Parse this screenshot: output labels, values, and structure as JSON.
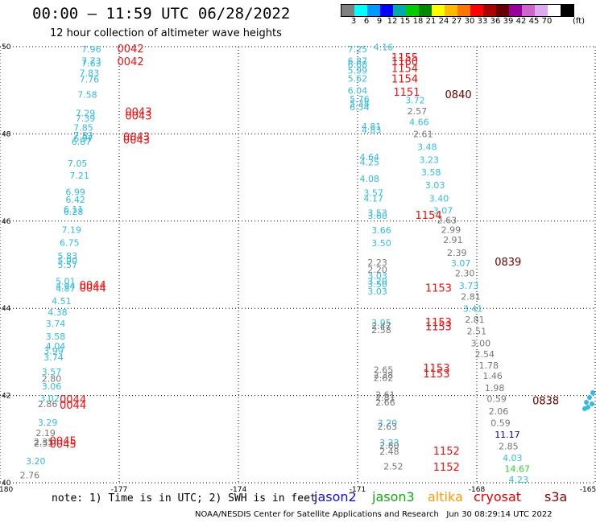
{
  "header": {
    "title": "00:00 – 11:59 UTC 06/28/2022",
    "subtitle": "12 hour collection of altimeter wave heights"
  },
  "colorbar": {
    "colors": [
      "#7f7f7f",
      "#00ffff",
      "#0099ff",
      "#0000ff",
      "#00aaaa",
      "#00cc00",
      "#008800",
      "#ffff00",
      "#ffbb00",
      "#ff7700",
      "#ff0000",
      "#aa0000",
      "#660000",
      "#990099",
      "#cc66cc",
      "#ddaaee",
      "#ffffff",
      "#000000"
    ],
    "ticks": [
      "3",
      "6",
      "9",
      "12",
      "15",
      "18",
      "21",
      "24",
      "27",
      "30",
      "33",
      "36",
      "39",
      "42",
      "45",
      "70"
    ],
    "unit": "(ft)"
  },
  "map": {
    "lon_range": [
      -180,
      -165
    ],
    "lat_range": [
      40,
      50
    ],
    "x_tick_labels": [
      "-180",
      "-177",
      "-174",
      "-171",
      "-168",
      "-165"
    ],
    "y_tick_labels": [
      "40",
      "42",
      "44",
      "46",
      "48",
      "50"
    ]
  },
  "chart_data": {
    "type": "scatter",
    "series": [
      {
        "name": "jason2",
        "color": "#1111cc"
      },
      {
        "name": "jason3",
        "color": "#11aa11"
      },
      {
        "name": "altika",
        "color": "#ff9900"
      },
      {
        "name": "cryosat",
        "color": "#dd0000"
      },
      {
        "name": "s3a",
        "color": "#880000"
      }
    ],
    "swh_labels": [
      {
        "lon": -177.95,
        "lat": 49.87,
        "text": "7.96",
        "color": "#33bbdd"
      },
      {
        "lon": -177.95,
        "lat": 49.6,
        "text": "7.73",
        "color": "#33bbdd"
      },
      {
        "lon": -177.95,
        "lat": 49.55,
        "text": "7.63",
        "color": "#33bbdd"
      },
      {
        "lon": -178.0,
        "lat": 49.33,
        "text": "7.83",
        "color": "#33bbdd"
      },
      {
        "lon": -178.0,
        "lat": 49.18,
        "text": "7.76",
        "color": "#33bbdd"
      },
      {
        "lon": -178.05,
        "lat": 48.83,
        "text": "7.58",
        "color": "#33bbdd"
      },
      {
        "lon": -178.1,
        "lat": 48.4,
        "text": "7.29",
        "color": "#33bbdd"
      },
      {
        "lon": -178.1,
        "lat": 48.28,
        "text": "7.39",
        "color": "#33bbdd"
      },
      {
        "lon": -178.15,
        "lat": 48.07,
        "text": "7.85",
        "color": "#33bbdd"
      },
      {
        "lon": -178.15,
        "lat": 47.9,
        "text": "7.82",
        "color": "#33bbdd"
      },
      {
        "lon": -178.15,
        "lat": 47.82,
        "text": "6.97",
        "color": "#33bbdd"
      },
      {
        "lon": -178.2,
        "lat": 47.75,
        "text": "6.87",
        "color": "#33bbdd"
      },
      {
        "lon": -178.3,
        "lat": 47.25,
        "text": "7.05",
        "color": "#33bbdd"
      },
      {
        "lon": -178.25,
        "lat": 46.97,
        "text": "7.21",
        "color": "#33bbdd"
      },
      {
        "lon": -178.35,
        "lat": 46.6,
        "text": "6.99",
        "color": "#33bbdd"
      },
      {
        "lon": -178.35,
        "lat": 46.42,
        "text": "6.42",
        "color": "#33bbdd"
      },
      {
        "lon": -178.4,
        "lat": 46.2,
        "text": "6.11",
        "color": "#33bbdd"
      },
      {
        "lon": -178.4,
        "lat": 46.14,
        "text": "6.28",
        "color": "#33bbdd"
      },
      {
        "lon": -178.45,
        "lat": 45.73,
        "text": "7.19",
        "color": "#33bbdd"
      },
      {
        "lon": -178.5,
        "lat": 45.43,
        "text": "6.75",
        "color": "#33bbdd"
      },
      {
        "lon": -178.55,
        "lat": 45.13,
        "text": "5.83",
        "color": "#33bbdd"
      },
      {
        "lon": -178.55,
        "lat": 45.02,
        "text": "5.90",
        "color": "#33bbdd"
      },
      {
        "lon": -178.55,
        "lat": 44.93,
        "text": "5.57",
        "color": "#33bbdd"
      },
      {
        "lon": -178.6,
        "lat": 44.55,
        "text": "5.01",
        "color": "#33bbdd"
      },
      {
        "lon": -178.6,
        "lat": 44.44,
        "text": "4.94",
        "color": "#33bbdd"
      },
      {
        "lon": -178.6,
        "lat": 44.38,
        "text": "4.87",
        "color": "#33bbdd"
      },
      {
        "lon": -178.7,
        "lat": 44.1,
        "text": "4.51",
        "color": "#33bbdd"
      },
      {
        "lon": -178.8,
        "lat": 43.84,
        "text": "4.38",
        "color": "#33bbdd"
      },
      {
        "lon": -178.85,
        "lat": 43.58,
        "text": "3.74",
        "color": "#33bbdd"
      },
      {
        "lon": -178.85,
        "lat": 43.28,
        "text": "3.58",
        "color": "#33bbdd"
      },
      {
        "lon": -178.85,
        "lat": 43.06,
        "text": "4.04",
        "color": "#33bbdd"
      },
      {
        "lon": -178.9,
        "lat": 42.95,
        "text": "3.99",
        "color": "#33bbdd"
      },
      {
        "lon": -178.9,
        "lat": 42.8,
        "text": "3.74",
        "color": "#33bbdd"
      },
      {
        "lon": -178.95,
        "lat": 42.47,
        "text": "3.57",
        "color": "#33bbdd"
      },
      {
        "lon": -178.95,
        "lat": 42.32,
        "text": "2.80",
        "color": "#777777"
      },
      {
        "lon": -178.95,
        "lat": 42.14,
        "text": "3.06",
        "color": "#33bbdd"
      },
      {
        "lon": -179.0,
        "lat": 41.86,
        "text": "3.02",
        "color": "#33bbdd"
      },
      {
        "lon": -179.05,
        "lat": 41.73,
        "text": "2.86",
        "color": "#777777"
      },
      {
        "lon": -179.05,
        "lat": 41.31,
        "text": "3.29",
        "color": "#33bbdd"
      },
      {
        "lon": -179.1,
        "lat": 41.07,
        "text": "2.19",
        "color": "#777777"
      },
      {
        "lon": -179.15,
        "lat": 40.87,
        "text": "2.35",
        "color": "#777777"
      },
      {
        "lon": -179.15,
        "lat": 40.83,
        "text": "2.53",
        "color": "#777777"
      },
      {
        "lon": -179.35,
        "lat": 40.42,
        "text": "3.20",
        "color": "#33bbdd"
      },
      {
        "lon": -179.5,
        "lat": 40.1,
        "text": "2.76",
        "color": "#777777"
      },
      {
        "lon": -171.25,
        "lat": 49.87,
        "text": "7.25",
        "color": "#33bbdd"
      },
      {
        "lon": -170.6,
        "lat": 49.92,
        "text": "4.16",
        "color": "#33bbdd"
      },
      {
        "lon": -171.25,
        "lat": 49.6,
        "text": "6.87",
        "color": "#33bbdd"
      },
      {
        "lon": -171.25,
        "lat": 49.52,
        "text": "6.68",
        "color": "#33bbdd"
      },
      {
        "lon": -171.25,
        "lat": 49.38,
        "text": "5.99",
        "color": "#33bbdd"
      },
      {
        "lon": -171.25,
        "lat": 49.2,
        "text": "5.62",
        "color": "#33bbdd"
      },
      {
        "lon": -171.25,
        "lat": 48.92,
        "text": "6.04",
        "color": "#33bbdd"
      },
      {
        "lon": -171.2,
        "lat": 48.73,
        "text": "5.76",
        "color": "#33bbdd"
      },
      {
        "lon": -171.2,
        "lat": 48.63,
        "text": "5.38",
        "color": "#33bbdd"
      },
      {
        "lon": -171.2,
        "lat": 48.54,
        "text": "6.54",
        "color": "#33bbdd"
      },
      {
        "lon": -169.8,
        "lat": 48.7,
        "text": "3.72",
        "color": "#33bbdd"
      },
      {
        "lon": -169.75,
        "lat": 48.45,
        "text": "2.57",
        "color": "#777777"
      },
      {
        "lon": -169.7,
        "lat": 48.2,
        "text": "4.66",
        "color": "#33bbdd"
      },
      {
        "lon": -170.9,
        "lat": 48.1,
        "text": "4.81",
        "color": "#33bbdd"
      },
      {
        "lon": -170.9,
        "lat": 48.02,
        "text": "4.83",
        "color": "#33bbdd"
      },
      {
        "lon": -169.6,
        "lat": 47.92,
        "text": "2.61",
        "color": "#777777"
      },
      {
        "lon": -169.5,
        "lat": 47.63,
        "text": "3.48",
        "color": "#33bbdd"
      },
      {
        "lon": -169.45,
        "lat": 47.33,
        "text": "3.23",
        "color": "#33bbdd"
      },
      {
        "lon": -170.95,
        "lat": 47.4,
        "text": "4.64",
        "color": "#33bbdd"
      },
      {
        "lon": -170.95,
        "lat": 47.28,
        "text": "4.25",
        "color": "#33bbdd"
      },
      {
        "lon": -169.4,
        "lat": 47.05,
        "text": "3.58",
        "color": "#33bbdd"
      },
      {
        "lon": -169.3,
        "lat": 46.75,
        "text": "3.03",
        "color": "#33bbdd"
      },
      {
        "lon": -170.95,
        "lat": 46.9,
        "text": "4.08",
        "color": "#33bbdd"
      },
      {
        "lon": -169.2,
        "lat": 46.45,
        "text": "3.40",
        "color": "#33bbdd"
      },
      {
        "lon": -170.85,
        "lat": 46.58,
        "text": "3.57",
        "color": "#33bbdd"
      },
      {
        "lon": -170.85,
        "lat": 46.45,
        "text": "4.17",
        "color": "#33bbdd"
      },
      {
        "lon": -169.1,
        "lat": 46.17,
        "text": "3.07",
        "color": "#33bbdd"
      },
      {
        "lon": -170.75,
        "lat": 46.12,
        "text": "3.53",
        "color": "#33bbdd"
      },
      {
        "lon": -170.75,
        "lat": 46.05,
        "text": "3.60",
        "color": "#33bbdd"
      },
      {
        "lon": -169.0,
        "lat": 45.95,
        "text": "2.63",
        "color": "#777777"
      },
      {
        "lon": -168.9,
        "lat": 45.73,
        "text": "2.99",
        "color": "#777777"
      },
      {
        "lon": -168.85,
        "lat": 45.5,
        "text": "2.91",
        "color": "#777777"
      },
      {
        "lon": -170.65,
        "lat": 45.72,
        "text": "3.66",
        "color": "#33bbdd"
      },
      {
        "lon": -170.65,
        "lat": 45.42,
        "text": "3.50",
        "color": "#33bbdd"
      },
      {
        "lon": -168.75,
        "lat": 45.2,
        "text": "2.39",
        "color": "#777777"
      },
      {
        "lon": -168.65,
        "lat": 44.96,
        "text": "3.07",
        "color": "#33bbdd"
      },
      {
        "lon": -168.55,
        "lat": 44.73,
        "text": "2.30",
        "color": "#777777"
      },
      {
        "lon": -170.75,
        "lat": 44.98,
        "text": "2.23",
        "color": "#777777"
      },
      {
        "lon": -170.75,
        "lat": 44.82,
        "text": "2.20",
        "color": "#777777"
      },
      {
        "lon": -170.75,
        "lat": 44.68,
        "text": "3.03",
        "color": "#33bbdd"
      },
      {
        "lon": -168.45,
        "lat": 44.45,
        "text": "3.73",
        "color": "#33bbdd"
      },
      {
        "lon": -170.75,
        "lat": 44.55,
        "text": "3.20",
        "color": "#33bbdd"
      },
      {
        "lon": -170.75,
        "lat": 44.48,
        "text": "3.50",
        "color": "#33bbdd"
      },
      {
        "lon": -170.75,
        "lat": 44.32,
        "text": "3.03",
        "color": "#33bbdd"
      },
      {
        "lon": -168.4,
        "lat": 44.2,
        "text": "2.81",
        "color": "#777777"
      },
      {
        "lon": -168.35,
        "lat": 43.92,
        "text": "3.41",
        "color": "#33bbdd"
      },
      {
        "lon": -168.3,
        "lat": 43.67,
        "text": "2.81",
        "color": "#777777"
      },
      {
        "lon": -168.25,
        "lat": 43.4,
        "text": "2.51",
        "color": "#777777"
      },
      {
        "lon": -170.65,
        "lat": 43.6,
        "text": "3.05",
        "color": "#33bbdd"
      },
      {
        "lon": -170.65,
        "lat": 43.52,
        "text": "2.47",
        "color": "#777777"
      },
      {
        "lon": -170.65,
        "lat": 43.43,
        "text": "2.58",
        "color": "#777777"
      },
      {
        "lon": -168.15,
        "lat": 43.13,
        "text": "3.00",
        "color": "#777777"
      },
      {
        "lon": -168.05,
        "lat": 42.88,
        "text": "2.54",
        "color": "#777777"
      },
      {
        "lon": -167.95,
        "lat": 42.62,
        "text": "1.78",
        "color": "#777777"
      },
      {
        "lon": -167.85,
        "lat": 42.38,
        "text": "1.46",
        "color": "#777777"
      },
      {
        "lon": -170.6,
        "lat": 42.52,
        "text": "2.65",
        "color": "#777777"
      },
      {
        "lon": -170.6,
        "lat": 42.4,
        "text": "2.38",
        "color": "#777777"
      },
      {
        "lon": -170.6,
        "lat": 42.33,
        "text": "2.62",
        "color": "#777777"
      },
      {
        "lon": -167.8,
        "lat": 42.1,
        "text": "1.98",
        "color": "#777777"
      },
      {
        "lon": -167.75,
        "lat": 41.85,
        "text": "0.59",
        "color": "#777777"
      },
      {
        "lon": -167.7,
        "lat": 41.57,
        "text": "2.06",
        "color": "#777777"
      },
      {
        "lon": -167.65,
        "lat": 41.3,
        "text": "0.59",
        "color": "#777777"
      },
      {
        "lon": -170.55,
        "lat": 41.95,
        "text": "2.61",
        "color": "#777777"
      },
      {
        "lon": -170.55,
        "lat": 41.88,
        "text": "2.81",
        "color": "#777777"
      },
      {
        "lon": -170.55,
        "lat": 41.77,
        "text": "2.66",
        "color": "#777777"
      },
      {
        "lon": -167.55,
        "lat": 41.03,
        "text": "11.17",
        "color": "#000099"
      },
      {
        "lon": -167.45,
        "lat": 40.77,
        "text": "2.85",
        "color": "#777777"
      },
      {
        "lon": -170.5,
        "lat": 41.3,
        "text": "3.20",
        "color": "#33bbdd"
      },
      {
        "lon": -170.5,
        "lat": 41.22,
        "text": "2.63",
        "color": "#777777"
      },
      {
        "lon": -167.35,
        "lat": 40.5,
        "text": "4.03",
        "color": "#33bbdd"
      },
      {
        "lon": -167.3,
        "lat": 40.25,
        "text": "14.67",
        "color": "#33cc33"
      },
      {
        "lon": -167.2,
        "lat": 40.0,
        "text": "4.23",
        "color": "#33bbdd"
      },
      {
        "lon": -170.45,
        "lat": 40.85,
        "text": "3.23",
        "color": "#33bbdd"
      },
      {
        "lon": -170.45,
        "lat": 40.78,
        "text": "2.80",
        "color": "#777777"
      },
      {
        "lon": -170.45,
        "lat": 40.65,
        "text": "2.48",
        "color": "#777777"
      },
      {
        "lon": -170.35,
        "lat": 40.3,
        "text": "2.52",
        "color": "#777777"
      }
    ],
    "time_labels": [
      {
        "lon": -177.05,
        "lat": 49.87,
        "text": "0042",
        "color": "#ee1111"
      },
      {
        "lon": -177.05,
        "lat": 49.58,
        "text": "0042",
        "color": "#ee1111"
      },
      {
        "lon": -176.85,
        "lat": 48.42,
        "text": "0043",
        "color": "#ee1111"
      },
      {
        "lon": -176.85,
        "lat": 48.33,
        "text": "0043",
        "color": "#ee1111"
      },
      {
        "lon": -176.9,
        "lat": 47.85,
        "text": "0043",
        "color": "#ee1111"
      },
      {
        "lon": -176.9,
        "lat": 47.78,
        "text": "0043",
        "color": "#ee1111"
      },
      {
        "lon": -178.0,
        "lat": 44.45,
        "text": "0044",
        "color": "#ee1111"
      },
      {
        "lon": -178.0,
        "lat": 44.38,
        "text": "0044",
        "color": "#ee1111"
      },
      {
        "lon": -178.5,
        "lat": 41.83,
        "text": "0044",
        "color": "#ee1111"
      },
      {
        "lon": -178.5,
        "lat": 41.7,
        "text": "0044",
        "color": "#ee1111"
      },
      {
        "lon": -178.75,
        "lat": 40.88,
        "text": "0045",
        "color": "#ee1111"
      },
      {
        "lon": -178.75,
        "lat": 40.8,
        "text": "0045",
        "color": "#ee1111"
      },
      {
        "lon": -170.15,
        "lat": 49.67,
        "text": "1155",
        "color": "#ee1111"
      },
      {
        "lon": -170.15,
        "lat": 49.58,
        "text": "1160",
        "color": "#ee1111"
      },
      {
        "lon": -170.15,
        "lat": 49.42,
        "text": "1154",
        "color": "#ee1111"
      },
      {
        "lon": -170.15,
        "lat": 49.18,
        "text": "1154",
        "color": "#ee1111"
      },
      {
        "lon": -170.1,
        "lat": 48.87,
        "text": "1151",
        "color": "#ee1111"
      },
      {
        "lon": -168.8,
        "lat": 48.82,
        "text": "0840",
        "color": "#660000"
      },
      {
        "lon": -169.55,
        "lat": 46.05,
        "text": "1154",
        "color": "#ee1111"
      },
      {
        "lon": -167.55,
        "lat": 44.98,
        "text": "0839",
        "color": "#660000"
      },
      {
        "lon": -169.3,
        "lat": 44.38,
        "text": "1153",
        "color": "#ee1111"
      },
      {
        "lon": -169.3,
        "lat": 43.6,
        "text": "1153",
        "color": "#ee1111"
      },
      {
        "lon": -169.3,
        "lat": 43.5,
        "text": "1153",
        "color": "#ee1111"
      },
      {
        "lon": -169.35,
        "lat": 42.55,
        "text": "1153",
        "color": "#ee1111"
      },
      {
        "lon": -169.35,
        "lat": 42.42,
        "text": "1153",
        "color": "#ee1111"
      },
      {
        "lon": -166.6,
        "lat": 41.8,
        "text": "0838",
        "color": "#660000"
      },
      {
        "lon": -169.1,
        "lat": 40.65,
        "text": "1152",
        "color": "#ee1111"
      },
      {
        "lon": -169.1,
        "lat": 40.28,
        "text": "1152",
        "color": "#ee1111"
      }
    ]
  },
  "footer": {
    "note": "note: 1) Time is in UTC; 2) SWH is in feet",
    "credit": "NOAA/NESDIS Center for Satellite Applications and Research   Jun 30 08:29:14 UTC 2022"
  }
}
